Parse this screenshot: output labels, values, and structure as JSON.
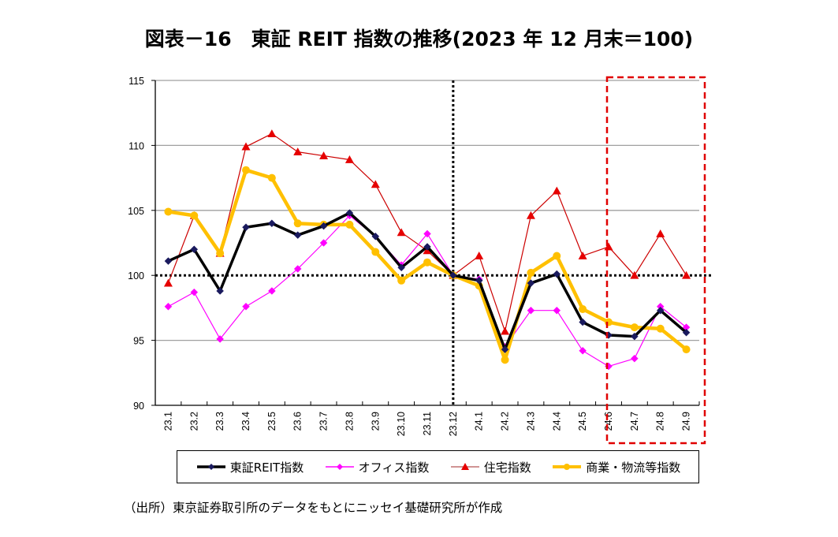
{
  "title": "図表－16　東証 REIT 指数の推移(2023 年 12 月末＝100)",
  "source_note": "（出所）東京証券取引所のデータをもとにニッセイ基礎研究所が作成",
  "chart_data": {
    "type": "line",
    "title": "図表－16　東証 REIT 指数の推移(2023 年 12 月末＝100)",
    "xlabel": "",
    "ylabel": "",
    "ylim": [
      90,
      115
    ],
    "yticks": [
      90,
      95,
      100,
      105,
      110,
      115
    ],
    "grid": true,
    "legend_position": "bottom",
    "reference_line_y": 100,
    "reference_line_x": "23.12",
    "highlight_range": [
      "24.6",
      "24.9"
    ],
    "categories": [
      "23.1",
      "23.2",
      "23.3",
      "23.4",
      "23.5",
      "23.6",
      "23.7",
      "23.8",
      "23.9",
      "23.10",
      "23.11",
      "23.12",
      "24.1",
      "24.2",
      "24.3",
      "24.4",
      "24.5",
      "24.6",
      "24.7",
      "24.8",
      "24.9"
    ],
    "series": [
      {
        "name": "東証REIT指数",
        "color": "#000000",
        "marker": "diamond",
        "marker_color": "#1a1a5e",
        "values": [
          101.1,
          102.0,
          98.8,
          103.7,
          104.0,
          103.1,
          103.8,
          104.8,
          103.0,
          100.6,
          102.2,
          100.0,
          99.6,
          94.3,
          99.4,
          100.1,
          96.4,
          95.4,
          95.3,
          97.3,
          95.6
        ]
      },
      {
        "name": "オフィス指数",
        "color": "#ff00ff",
        "marker": "diamond",
        "marker_color": "#ff00ff",
        "values": [
          97.6,
          98.7,
          95.1,
          97.6,
          98.8,
          100.5,
          102.5,
          104.6,
          103.0,
          100.8,
          103.2,
          100.0,
          99.7,
          94.5,
          97.3,
          97.3,
          94.2,
          93.0,
          93.6,
          97.6,
          96.0
        ]
      },
      {
        "name": "住宅指数",
        "color": "#cc0000",
        "marker": "triangle",
        "marker_color": "#e60000",
        "values": [
          99.4,
          104.6,
          101.7,
          109.9,
          110.9,
          109.5,
          109.2,
          108.9,
          107.0,
          103.3,
          101.9,
          100.0,
          101.5,
          95.7,
          104.6,
          106.5,
          101.5,
          102.2,
          100.0,
          103.2,
          100.0
        ]
      },
      {
        "name": "商業・物流等指数",
        "color": "#ffc000",
        "marker": "circle",
        "marker_color": "#ffc000",
        "values": [
          104.9,
          104.6,
          101.7,
          108.1,
          107.5,
          104.0,
          103.9,
          103.9,
          101.8,
          99.6,
          101.0,
          100.0,
          99.2,
          93.5,
          100.2,
          101.5,
          97.4,
          96.4,
          96.0,
          95.9,
          94.3
        ]
      }
    ]
  }
}
